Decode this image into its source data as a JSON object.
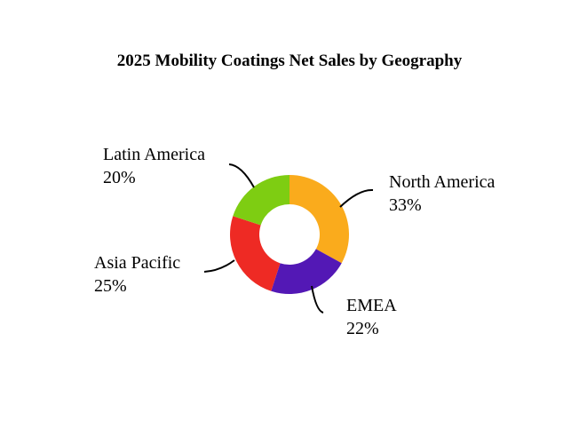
{
  "chart_data": {
    "type": "pie",
    "variant": "donut",
    "title": "2025 Mobility Coatings Net Sales by Geography",
    "slices": [
      {
        "label": "North America",
        "value": 33,
        "pct_text": "33%",
        "color": "#FAAB1C"
      },
      {
        "label": "EMEA",
        "value": 22,
        "pct_text": "22%",
        "color": "#5318B5"
      },
      {
        "label": "Asia Pacific",
        "value": 25,
        "pct_text": "25%",
        "color": "#EE2A24"
      },
      {
        "label": "Latin America",
        "value": 20,
        "pct_text": "20%",
        "color": "#7ECD12"
      }
    ],
    "start_angle_deg": 0,
    "direction": "clockwise",
    "legend": "none"
  }
}
